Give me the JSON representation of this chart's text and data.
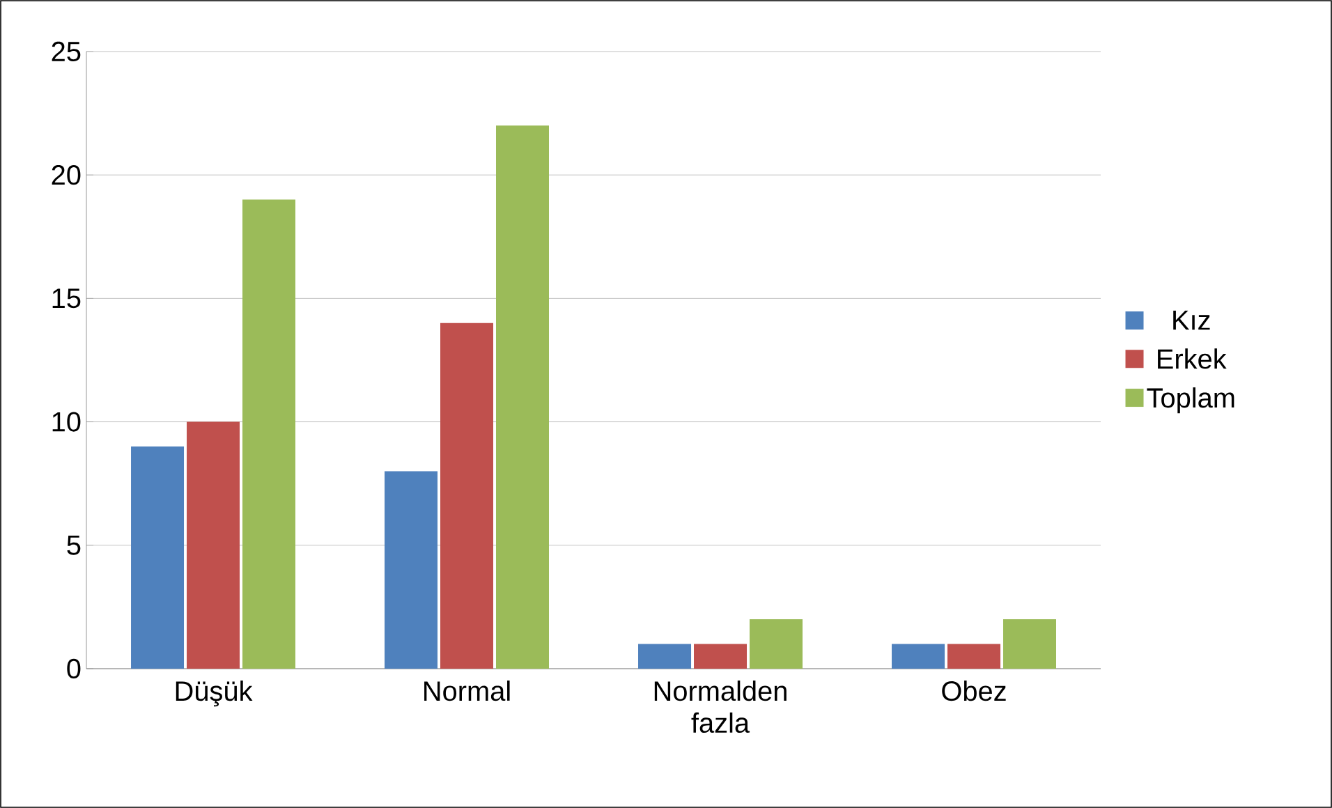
{
  "chart_data": {
    "type": "bar",
    "categories": [
      "Düşük",
      "Normal",
      "Normalden fazla",
      "Obez"
    ],
    "series": [
      {
        "name": "Kız",
        "color": "#4f81bd",
        "values": [
          9,
          8,
          1,
          1
        ]
      },
      {
        "name": "Erkek",
        "color": "#c0504d",
        "values": [
          10,
          14,
          1,
          1
        ]
      },
      {
        "name": "Toplam",
        "color": "#9bbb59",
        "values": [
          19,
          22,
          2,
          2
        ]
      }
    ],
    "ylim": [
      0,
      25
    ],
    "yticks": [
      0,
      5,
      10,
      15,
      20,
      25
    ],
    "grid": "y",
    "legend": "right"
  }
}
